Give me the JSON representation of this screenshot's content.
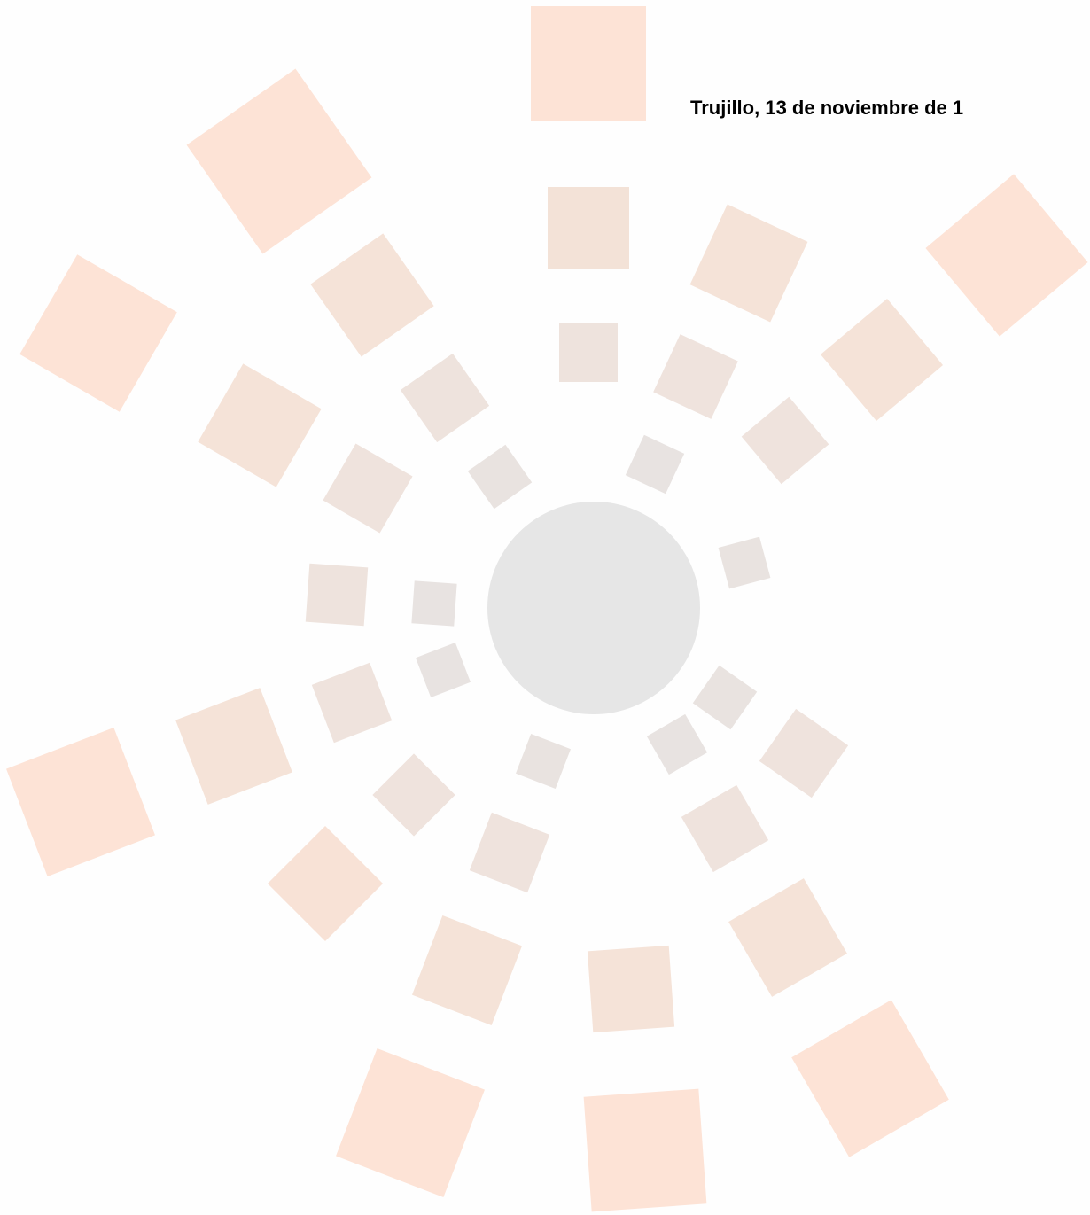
{
  "header": {
    "place_date": "Trujillo, 13 de noviembre de 1"
  }
}
